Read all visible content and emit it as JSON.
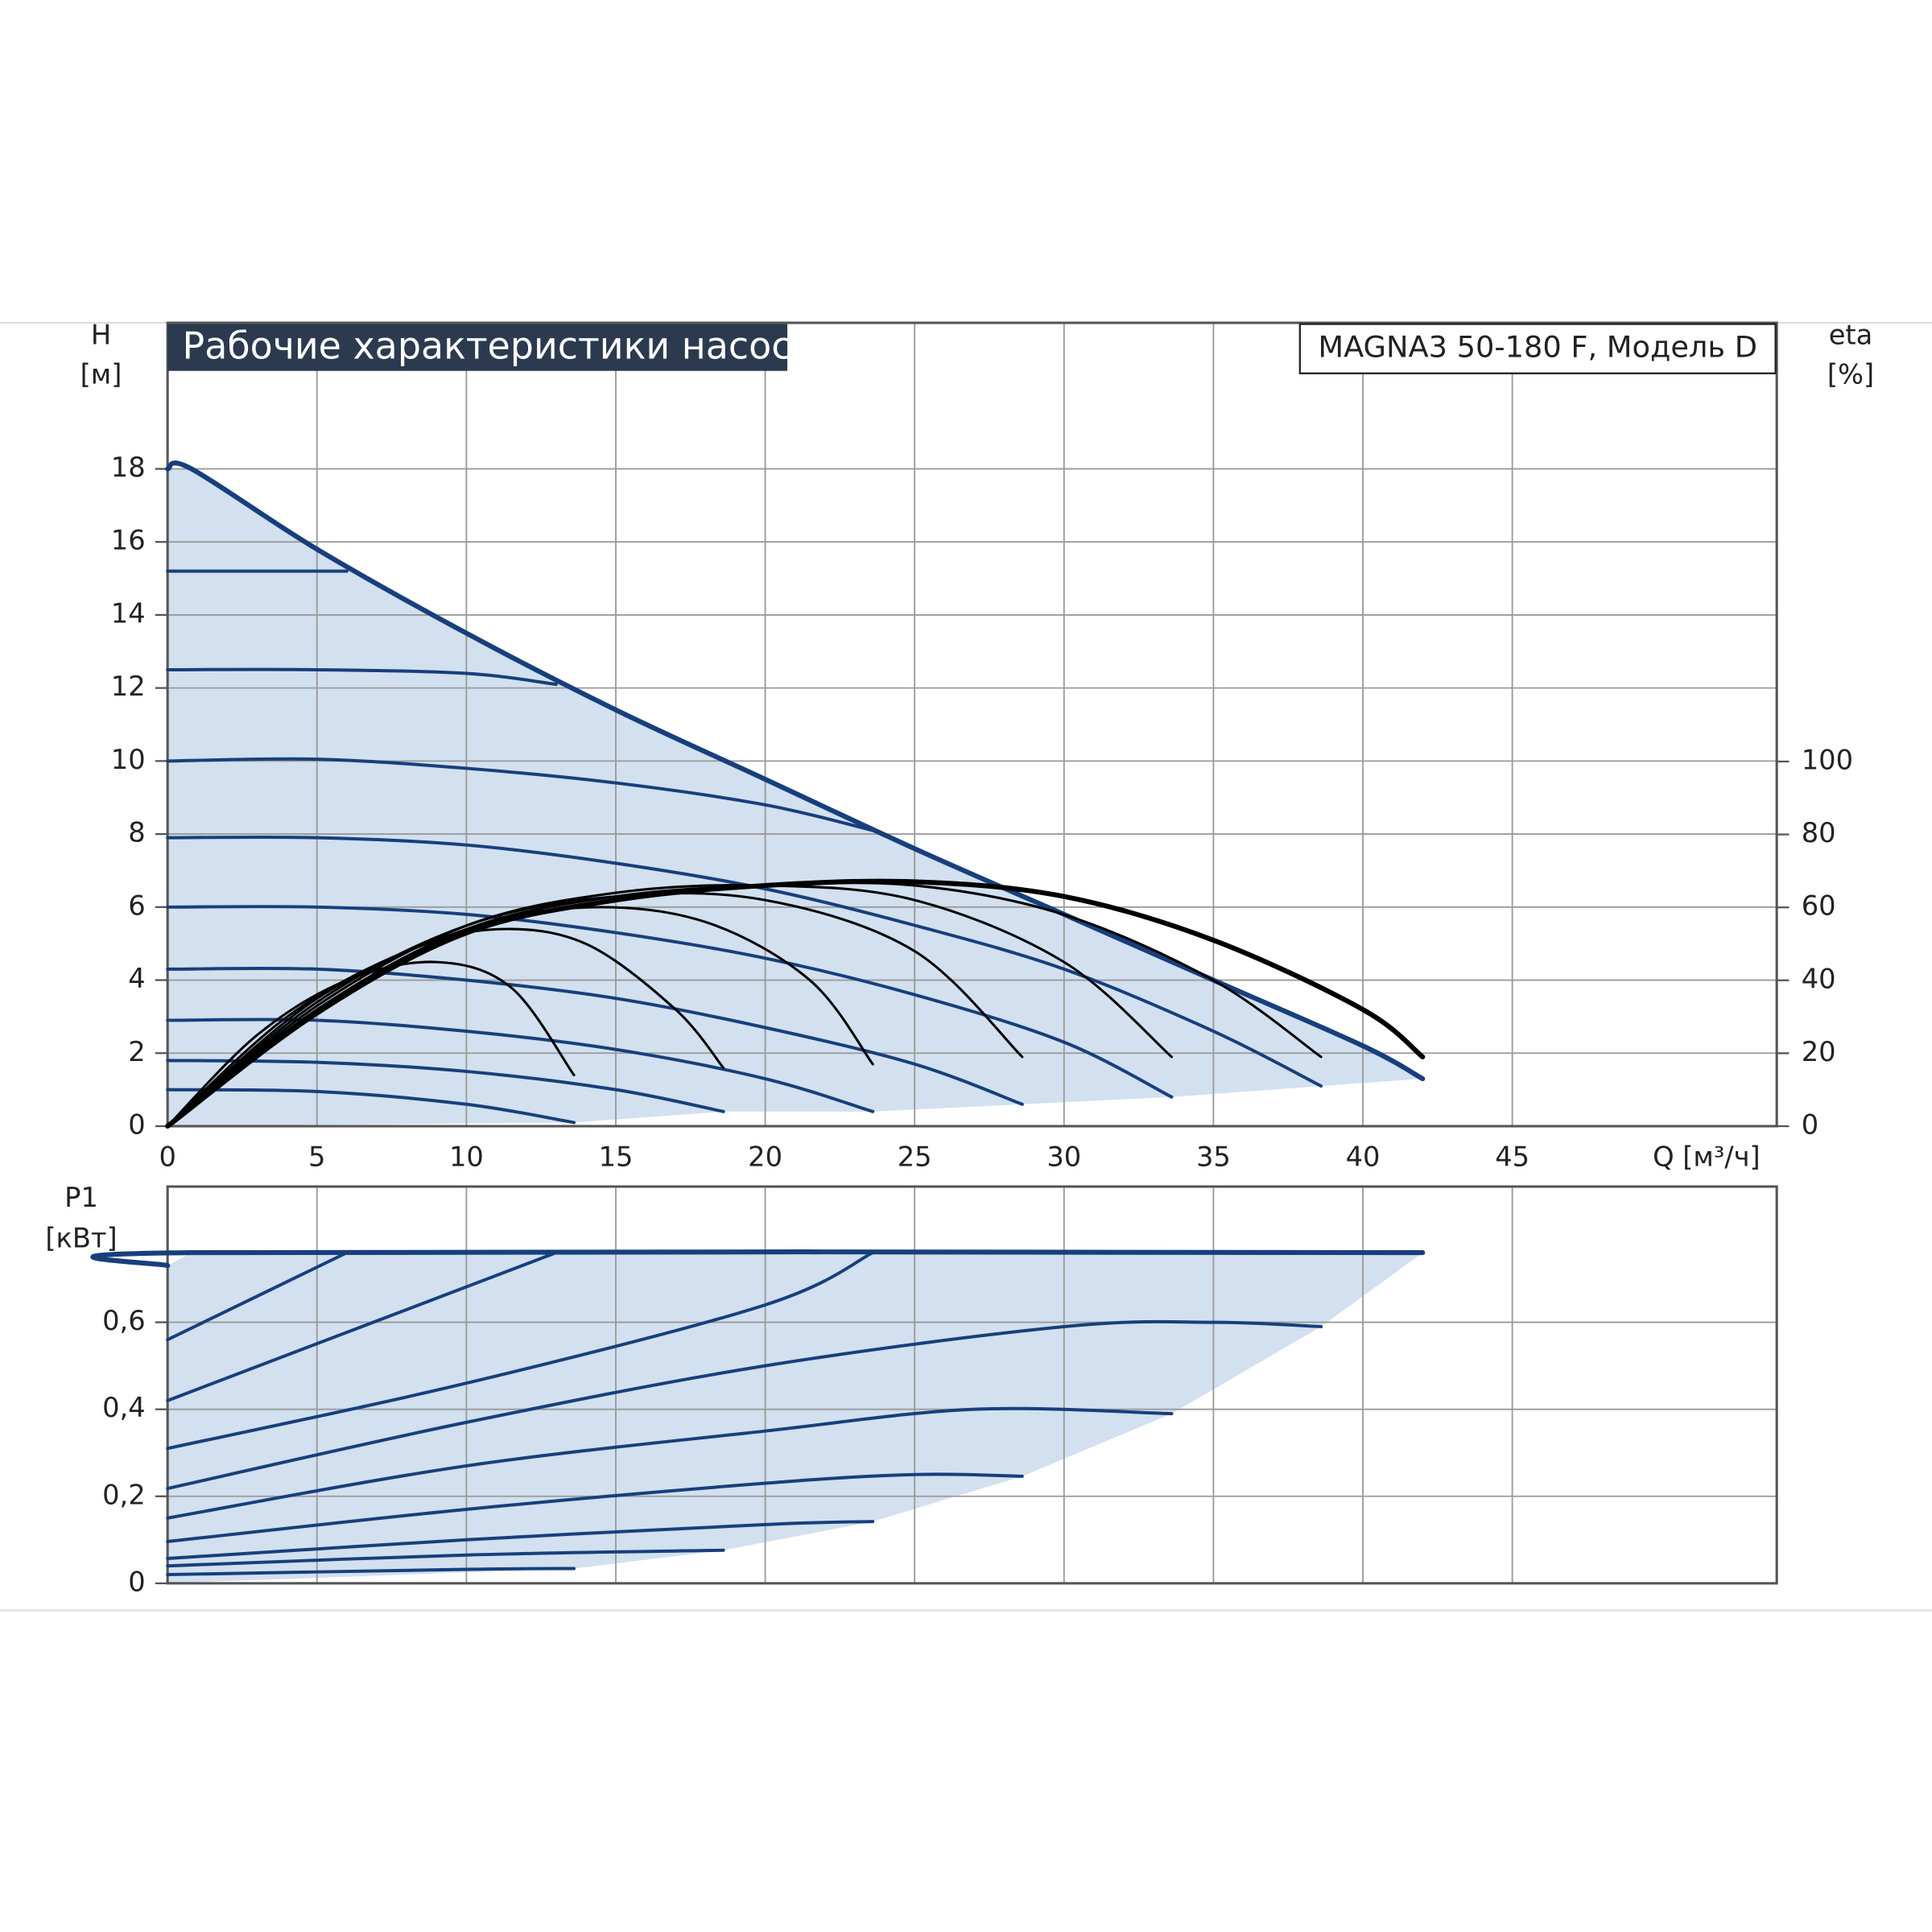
{
  "chart_data": [
    {
      "type": "line",
      "title": "Рабочие характеристики насоса",
      "model": "MAGNA3 50-180 F, Модель D",
      "y_label": {
        "name": "H",
        "unit": "[м]"
      },
      "y2_label": {
        "name": "eta",
        "unit": "[%]"
      },
      "x_label": "Q [м³/ч]",
      "xlim": [
        0,
        53.85
      ],
      "xticks": [
        0,
        5,
        10,
        15,
        20,
        25,
        30,
        35,
        40,
        45
      ],
      "ylim": [
        0,
        22
      ],
      "yticks": [
        0,
        2,
        4,
        6,
        8,
        10,
        12,
        14,
        16,
        18
      ],
      "y2lim": [
        0,
        220.3
      ],
      "y2ticks": [
        0,
        20,
        40,
        60,
        80,
        100
      ],
      "grid": true,
      "area_color": "#d2e0ef",
      "series": [
        {
          "color": "#173f7c",
          "x": [
            0,
            0.8,
            5,
            10,
            15,
            20,
            25,
            30,
            35,
            40,
            42
          ],
          "values": [
            18,
            18,
            15.8,
            13.5,
            11.4,
            9.5,
            7.6,
            5.8,
            4.0,
            2.2,
            1.3
          ]
        },
        {
          "color": "#173f7c",
          "x": [
            0,
            5,
            10,
            15,
            20,
            25,
            30,
            35,
            38.6
          ],
          "values": [
            7.9,
            7.9,
            7.7,
            7.2,
            6.5,
            5.5,
            4.3,
            2.6,
            1.1
          ]
        },
        {
          "color": "#173f7c",
          "x": [
            0,
            5,
            10,
            15,
            20,
            25,
            30,
            33.6
          ],
          "values": [
            6,
            6,
            5.8,
            5.3,
            4.6,
            3.6,
            2.3,
            0.8
          ]
        },
        {
          "color": "#173f7c",
          "x": [
            0,
            5,
            10,
            15,
            20,
            25,
            28.6
          ],
          "values": [
            4.3,
            4.3,
            4.0,
            3.5,
            2.7,
            1.7,
            0.6
          ]
        },
        {
          "color": "#173f7c",
          "x": [
            0,
            5,
            10,
            15,
            20,
            23.6
          ],
          "values": [
            2.9,
            2.9,
            2.6,
            2.1,
            1.3,
            0.4
          ]
        },
        {
          "color": "#173f7c",
          "x": [
            0,
            5,
            10,
            15,
            18.6
          ],
          "values": [
            1.8,
            1.75,
            1.5,
            1.0,
            0.4
          ]
        },
        {
          "color": "#173f7c",
          "x": [
            0,
            5,
            10,
            13.6
          ],
          "values": [
            1,
            0.95,
            0.6,
            0.1
          ]
        },
        {
          "color": "#173f7c",
          "x": [
            0,
            5,
            10,
            15,
            20,
            23.6
          ],
          "values": [
            10,
            10.05,
            9.8,
            9.4,
            8.8,
            8.1
          ]
        },
        {
          "color": "#173f7c",
          "x": [
            0,
            5,
            10,
            13
          ],
          "values": [
            12.5,
            12.5,
            12.4,
            12.1
          ]
        },
        {
          "color": "#173f7c",
          "x": [
            0,
            3,
            6
          ],
          "values": [
            15.2,
            15.2,
            15.2
          ]
        },
        {
          "color": "#000000",
          "axis": "y2",
          "x": [
            0,
            3,
            6,
            9,
            11.5,
            13.6
          ],
          "values": [
            0,
            25,
            40,
            45,
            38,
            14
          ]
        },
        {
          "color": "#000000",
          "axis": "y2",
          "x": [
            0,
            4,
            8,
            11,
            14,
            17,
            18.6
          ],
          "values": [
            0,
            30,
            48,
            54,
            50,
            32,
            16
          ]
        },
        {
          "color": "#000000",
          "axis": "y2",
          "x": [
            0,
            5,
            10,
            14,
            18,
            21.5,
            23.6
          ],
          "values": [
            0,
            35,
            54,
            60,
            56,
            40,
            17
          ]
        },
        {
          "color": "#000000",
          "axis": "y2",
          "x": [
            0,
            5,
            10,
            15,
            20,
            25,
            28.6
          ],
          "values": [
            0,
            34,
            55,
            63,
            62,
            48,
            19
          ]
        },
        {
          "color": "#000000",
          "axis": "y2",
          "x": [
            0,
            5,
            10,
            15,
            20,
            25,
            30,
            33.6
          ],
          "values": [
            0,
            33,
            55,
            64,
            66,
            62,
            45,
            19
          ]
        },
        {
          "color": "#000000",
          "axis": "y2",
          "x": [
            0,
            5,
            10,
            15,
            20,
            25,
            30,
            35,
            38.6
          ],
          "values": [
            0,
            32,
            54,
            63,
            66,
            66,
            58,
            40,
            19
          ]
        },
        {
          "color": "#000000",
          "axis": "y2",
          "x": [
            0,
            5,
            10,
            15,
            20,
            25,
            30,
            35,
            40,
            42
          ],
          "values": [
            0,
            31,
            53,
            62,
            66,
            67,
            63,
            51,
            32,
            19
          ]
        }
      ]
    },
    {
      "type": "line",
      "y_label": {
        "name": "P1",
        "unit": "[кВт]"
      },
      "ylim": [
        0,
        0.912
      ],
      "yticks": [
        0,
        {
          "value": 0.2,
          "label": "0,2"
        },
        {
          "value": 0.4,
          "label": "0,4"
        },
        {
          "value": 0.6,
          "label": "0,6"
        }
      ],
      "grid": true,
      "area_color": "#d2e0ef",
      "series": [
        {
          "color": "#173f7c",
          "x": [
            0,
            0.8,
            42
          ],
          "values": [
            0.73,
            0.76,
            0.76
          ]
        },
        {
          "color": "#173f7c",
          "x": [
            0,
            10,
            20,
            30,
            35,
            38.6
          ],
          "values": [
            0.218,
            0.37,
            0.5,
            0.59,
            0.6,
            0.59
          ]
        },
        {
          "color": "#173f7c",
          "x": [
            0,
            10,
            20,
            27,
            33.6
          ],
          "values": [
            0.15,
            0.27,
            0.35,
            0.4,
            0.39
          ]
        },
        {
          "color": "#173f7c",
          "x": [
            0,
            10,
            20,
            25,
            28.6
          ],
          "values": [
            0.096,
            0.17,
            0.23,
            0.25,
            0.246
          ]
        },
        {
          "color": "#173f7c",
          "x": [
            0,
            10,
            20,
            23.6
          ],
          "values": [
            0.057,
            0.1,
            0.135,
            0.142
          ]
        },
        {
          "color": "#173f7c",
          "x": [
            0,
            10,
            18.6
          ],
          "values": [
            0.04,
            0.065,
            0.076
          ]
        },
        {
          "color": "#173f7c",
          "x": [
            0,
            10,
            13.6
          ],
          "values": [
            0.02,
            0.032,
            0.034
          ]
        },
        {
          "color": "#173f7c",
          "x": [
            0,
            10,
            20,
            23.6
          ],
          "values": [
            0.31,
            0.46,
            0.64,
            0.76
          ]
        },
        {
          "color": "#173f7c",
          "x": [
            0,
            13
          ],
          "values": [
            0.42,
            0.76
          ]
        },
        {
          "color": "#173f7c",
          "x": [
            0,
            6
          ],
          "values": [
            0.56,
            0.76
          ]
        }
      ]
    }
  ]
}
